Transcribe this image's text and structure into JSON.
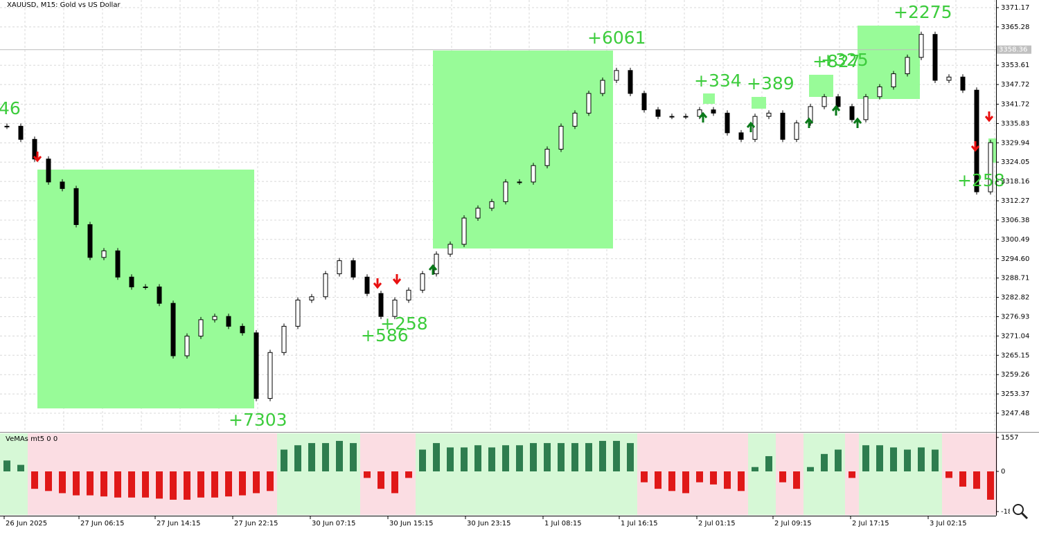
{
  "title": "XAUUSD, M15:  Gold vs US Dollar",
  "price_chart": {
    "type": "candlestick",
    "close": [
      3335,
      3331,
      3325,
      3318,
      3316,
      3305,
      3295,
      3297,
      3289,
      3286,
      3286,
      3281,
      3265,
      3271,
      3276,
      3277,
      3274,
      3272,
      3252,
      3266,
      3274,
      3282,
      3283,
      3290,
      3294,
      3289,
      3284,
      3277,
      3282,
      3285,
      3290,
      3296,
      3299,
      3307,
      3310,
      3312,
      3318,
      3318,
      3323,
      3328,
      3335,
      3339,
      3345,
      3349,
      3352,
      3345,
      3340,
      3338,
      3338,
      3338,
      3340,
      3339,
      3333,
      3331,
      3338,
      3339,
      3331,
      3336,
      3341,
      3344,
      3341,
      3337,
      3344,
      3347,
      3351,
      3356,
      3363,
      3349,
      3350,
      3346,
      3315,
      3330
    ],
    "ylim": [
      3247.48,
      3371.17
    ],
    "yticks": [
      3371.17,
      3365.28,
      3353.61,
      3347.72,
      3341.72,
      3335.83,
      3329.94,
      3324.05,
      3318.16,
      3312.27,
      3306.38,
      3300.49,
      {
        "value": 3294.6,
        "label": "3294.60"
      },
      3288.71,
      3282.82,
      3276.93,
      3271.04,
      3265.15,
      3259.26,
      3253.37,
      3247.48
    ],
    "current_price": 3358.36,
    "trade_labels": [
      "46",
      "+7303",
      "+586",
      "+258",
      "+6061",
      "+334",
      "+389",
      "+827",
      "+325",
      "+2275",
      "+258"
    ]
  },
  "indicator": {
    "name": "VeMAs mt5 0 0",
    "values": [
      500,
      300,
      -800,
      -900,
      -1000,
      -1100,
      -1100,
      -1150,
      -1200,
      -1200,
      -1200,
      -1250,
      -1300,
      -1300,
      -1200,
      -1200,
      -1150,
      -1100,
      -1000,
      -900,
      1000,
      1200,
      1300,
      1300,
      1400,
      1300,
      -300,
      -800,
      -1000,
      -300,
      1000,
      1300,
      1100,
      1100,
      1200,
      1100,
      1200,
      1200,
      1300,
      1300,
      1300,
      1300,
      1300,
      1400,
      1400,
      1300,
      -500,
      -800,
      -900,
      -1000,
      -500,
      -600,
      -800,
      -900,
      200,
      700,
      -500,
      -800,
      200,
      800,
      1000,
      -300,
      1200,
      1200,
      1100,
      1000,
      1100,
      1000,
      -300,
      -700,
      -800,
      -1300
    ],
    "ylim": [
      -1900,
      1557
    ],
    "yticks": [
      1557,
      0,
      -1843
    ]
  },
  "time_labels": [
    "26 Jun 2025",
    "27 Jun 06:15",
    "27 Jun 14:15",
    "27 Jun 22:15",
    "30 Jun 07:15",
    "30 Jun 15:15",
    "30 Jun 23:15",
    "1 Jul 08:15",
    "1 Jul 16:15",
    "2 Jul 01:15",
    "2 Jul 09:15",
    "2 Jul 17:15",
    "3 Jul 02:15"
  ]
}
